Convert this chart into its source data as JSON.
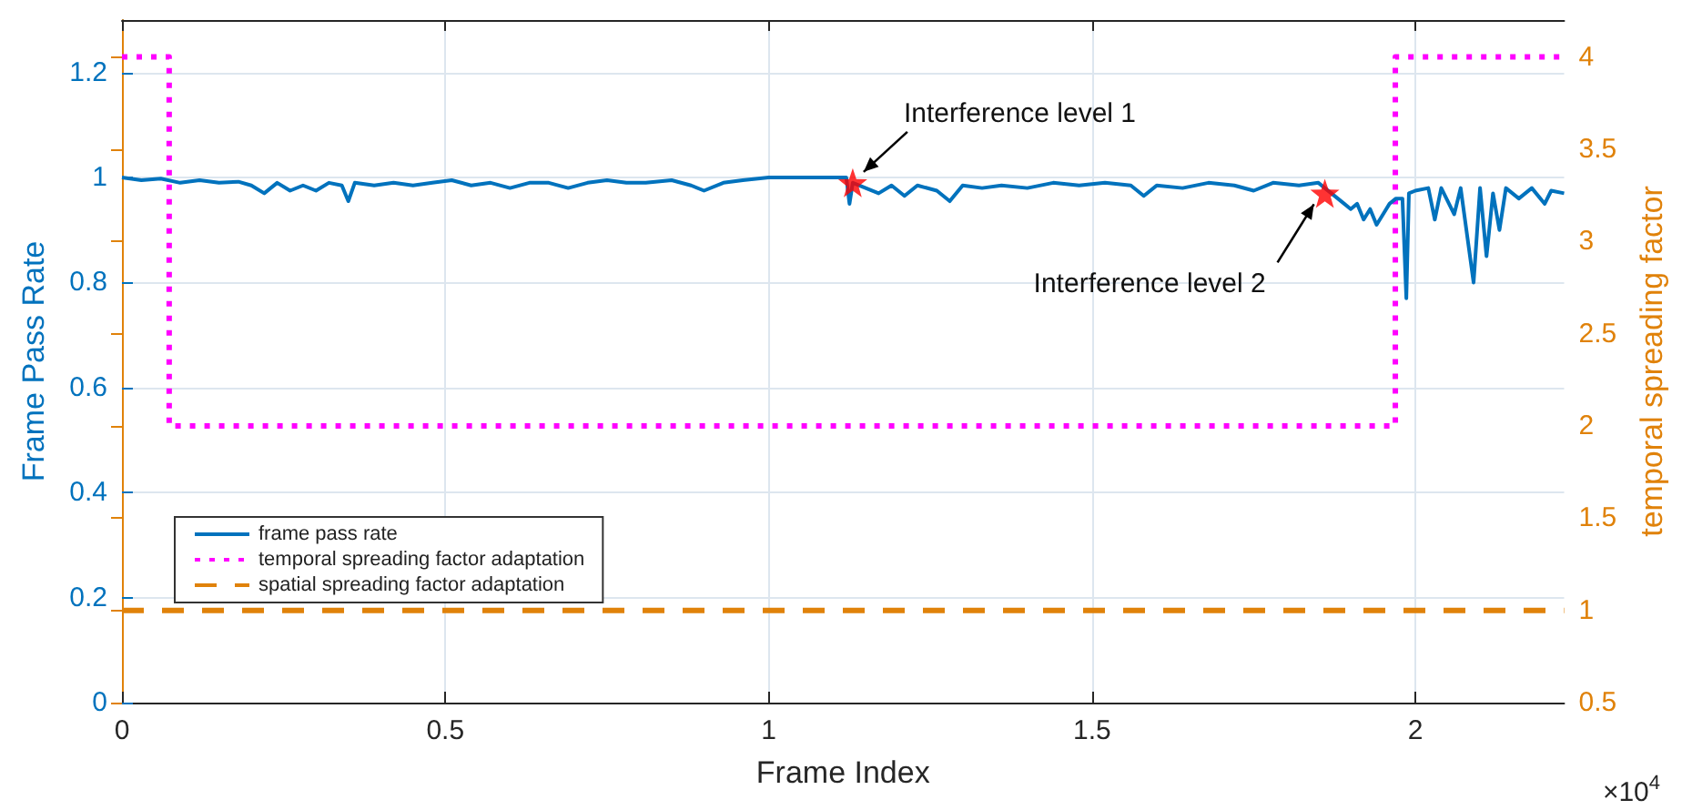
{
  "chart_data": {
    "type": "line",
    "xlabel": "Frame Index",
    "ylabel": "Frame Pass Rate",
    "y2label": "temporal spreading factor",
    "xlim": [
      0,
      2.23
    ],
    "xticks": [
      0,
      0.5,
      1,
      1.5,
      2
    ],
    "ylim": [
      0,
      1.3
    ],
    "yticks": [
      0,
      0.2,
      0.4,
      0.6,
      0.8,
      1,
      1.2
    ],
    "y2lim": [
      0.5,
      4.2
    ],
    "y2ticks": [
      0.5,
      1,
      1.5,
      2,
      2.5,
      3,
      3.5,
      4
    ],
    "grid": true,
    "legend": "bottom left",
    "series": [
      {
        "name": "frame pass rate",
        "color": "#0072bd",
        "marker": "none",
        "line_style": "solid",
        "x": [
          0,
          0.03,
          0.06,
          0.09,
          0.12,
          0.15,
          0.18,
          0.2,
          0.22,
          0.24,
          0.26,
          0.28,
          0.3,
          0.32,
          0.34,
          0.35,
          0.36,
          0.39,
          0.42,
          0.45,
          0.48,
          0.51,
          0.54,
          0.57,
          0.6,
          0.63,
          0.66,
          0.69,
          0.72,
          0.75,
          0.78,
          0.81,
          0.85,
          0.88,
          0.9,
          0.93,
          0.96,
          1.0,
          1.05,
          1.1,
          1.12,
          1.125,
          1.13,
          1.15,
          1.17,
          1.19,
          1.21,
          1.23,
          1.26,
          1.28,
          1.3,
          1.33,
          1.36,
          1.4,
          1.44,
          1.48,
          1.52,
          1.56,
          1.58,
          1.6,
          1.64,
          1.68,
          1.72,
          1.75,
          1.78,
          1.82,
          1.85,
          1.87,
          1.88,
          1.89,
          1.9,
          1.91,
          1.92,
          1.93,
          1.94,
          1.95,
          1.96,
          1.97,
          1.98,
          1.986,
          1.99,
          2.0,
          2.02,
          2.03,
          2.04,
          2.06,
          2.07,
          2.09,
          2.1,
          2.11,
          2.12,
          2.13,
          2.14,
          2.16,
          2.18,
          2.2,
          2.21,
          2.23
        ],
        "values": [
          1.0,
          0.995,
          0.998,
          0.99,
          0.995,
          0.99,
          0.992,
          0.985,
          0.97,
          0.99,
          0.975,
          0.985,
          0.975,
          0.99,
          0.985,
          0.955,
          0.99,
          0.985,
          0.99,
          0.985,
          0.99,
          0.995,
          0.985,
          0.99,
          0.98,
          0.99,
          0.99,
          0.98,
          0.99,
          0.995,
          0.99,
          0.99,
          0.995,
          0.985,
          0.975,
          0.99,
          0.995,
          1.0,
          1.0,
          1.0,
          1.0,
          0.95,
          0.99,
          0.98,
          0.97,
          0.985,
          0.965,
          0.985,
          0.975,
          0.955,
          0.985,
          0.98,
          0.985,
          0.98,
          0.99,
          0.985,
          0.99,
          0.985,
          0.965,
          0.985,
          0.98,
          0.99,
          0.985,
          0.975,
          0.99,
          0.985,
          0.99,
          0.97,
          0.96,
          0.95,
          0.94,
          0.95,
          0.92,
          0.94,
          0.91,
          0.93,
          0.95,
          0.96,
          0.96,
          0.77,
          0.97,
          0.975,
          0.98,
          0.92,
          0.98,
          0.93,
          0.98,
          0.8,
          0.98,
          0.85,
          0.97,
          0.9,
          0.98,
          0.96,
          0.98,
          0.95,
          0.975,
          0.97
        ]
      },
      {
        "name": "temporal spreading factor adaptation",
        "type": "step",
        "axis": "y2",
        "color": "#ff00ff",
        "marker": "none",
        "line_style": "dotted",
        "x": [
          0,
          0.073,
          1.969,
          2.23
        ],
        "values": [
          4,
          2,
          4,
          4
        ]
      },
      {
        "name": "spatial spreading factor adaptation",
        "axis": "y2",
        "color": "#e0820a",
        "marker": "none",
        "line_style": "dashed",
        "x": [
          0,
          2.23
        ],
        "values": [
          1,
          1
        ]
      },
      {
        "type": "scatter",
        "color": "#ff0000",
        "marker": "star",
        "x": [
          1.13,
          1.86
        ],
        "values": [
          0.99,
          0.97
        ]
      }
    ],
    "annotations": [
      {
        "text": "Interference level 1",
        "x": 1.13,
        "y": 0.99
      },
      {
        "text": "Interference level 2",
        "x": 1.86,
        "y": 0.97
      },
      "×10$^{4}$"
    ]
  }
}
